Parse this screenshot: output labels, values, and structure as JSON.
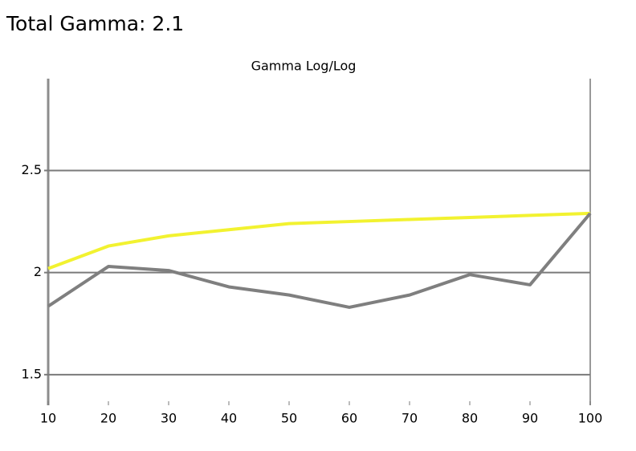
{
  "header": {
    "title": "Total Gamma: 2.1"
  },
  "chart_data": {
    "type": "line",
    "title": "Gamma Log/Log",
    "x": [
      10,
      20,
      30,
      40,
      50,
      60,
      70,
      80,
      90,
      100
    ],
    "series": [
      {
        "color": "#f2f230",
        "values": [
          2.02,
          2.13,
          2.18,
          2.21,
          2.24,
          2.25,
          2.26,
          2.27,
          2.28,
          2.29
        ]
      },
      {
        "color": "#7f7f7f",
        "values": [
          1.835,
          2.03,
          2.01,
          1.93,
          1.89,
          1.83,
          1.89,
          1.99,
          1.94,
          2.29
        ]
      }
    ],
    "xlim": [
      10,
      100
    ],
    "xticks": [
      10,
      20,
      30,
      40,
      50,
      60,
      70,
      80,
      90,
      100
    ],
    "ylim": [
      1.35,
      2.95
    ],
    "yticks": [
      1.5,
      2,
      2.5
    ],
    "grid": true
  }
}
